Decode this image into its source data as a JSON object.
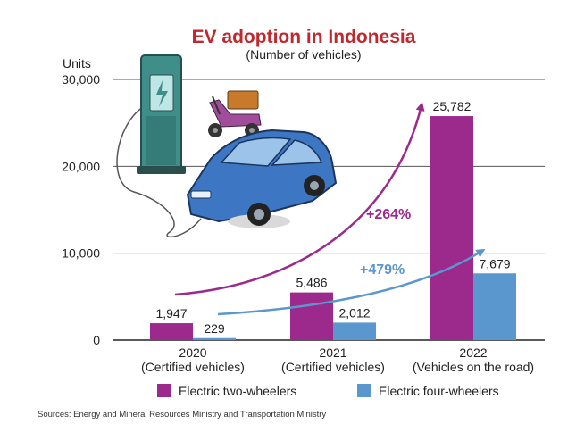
{
  "chart_data": {
    "type": "bar",
    "title": "EV adoption in Indonesia",
    "subtitle": "(Number of vehicles)",
    "ylabel": "Units",
    "ylim": [
      0,
      30000
    ],
    "yticks": [
      0,
      10000,
      20000,
      30000
    ],
    "ytick_labels": [
      "0",
      "10,000",
      "20,000",
      "30,000"
    ],
    "grid": true,
    "categories": [
      {
        "year": "2020",
        "note": "(Certified vehicles)"
      },
      {
        "year": "2021",
        "note": "(Certified vehicles)"
      },
      {
        "year": "2022",
        "note": "(Vehicles on the road)"
      }
    ],
    "series": [
      {
        "name": "Electric two-wheelers",
        "color": "#9b2a8c",
        "values": [
          1947,
          5486,
          25782
        ],
        "labels": [
          "1,947",
          "5,486",
          "25,782"
        ]
      },
      {
        "name": "Electric four-wheelers",
        "color": "#5b97cf",
        "values": [
          229,
          2012,
          7679
        ],
        "labels": [
          "229",
          "2,012",
          "7,679"
        ]
      }
    ],
    "annotations": [
      {
        "text": "+264%",
        "series": "Electric two-wheelers",
        "color": "#9b2a8c"
      },
      {
        "text": "+479%",
        "series": "Electric four-wheelers",
        "color": "#5b97cf"
      }
    ],
    "legend_position": "bottom",
    "title_color": "#c0282d"
  },
  "source": "Sources: Energy and Mineral Resources Ministry and Transportation Ministry",
  "illustration": [
    "charging-station-icon",
    "scooter-icon",
    "electric-car-icon"
  ]
}
